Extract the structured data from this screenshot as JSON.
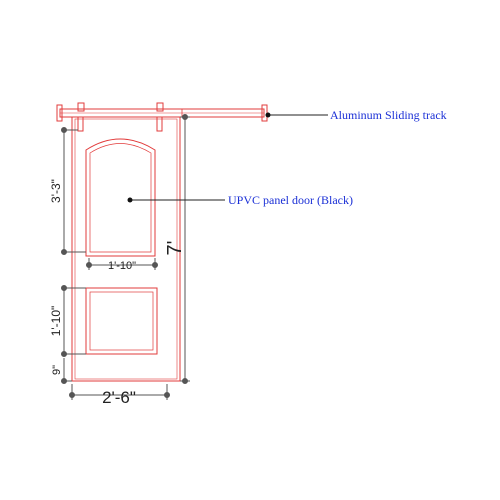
{
  "labels": {
    "track": "Aluminum Sliding track",
    "door": "UPVC panel door (Black)"
  },
  "dimensions": {
    "overall_height": "7'",
    "overall_width": "2'-6\"",
    "upper_panel_height": "3'-3\"",
    "upper_panel_width": "1'-10\"",
    "lower_panel_height": "1'-10\"",
    "bottom_rail": "9\""
  },
  "colors": {
    "door_line": "#e23b3b",
    "callout_text": "#1a2fd6",
    "dimension_line": "#555555",
    "dimension_text": "#222222"
  }
}
